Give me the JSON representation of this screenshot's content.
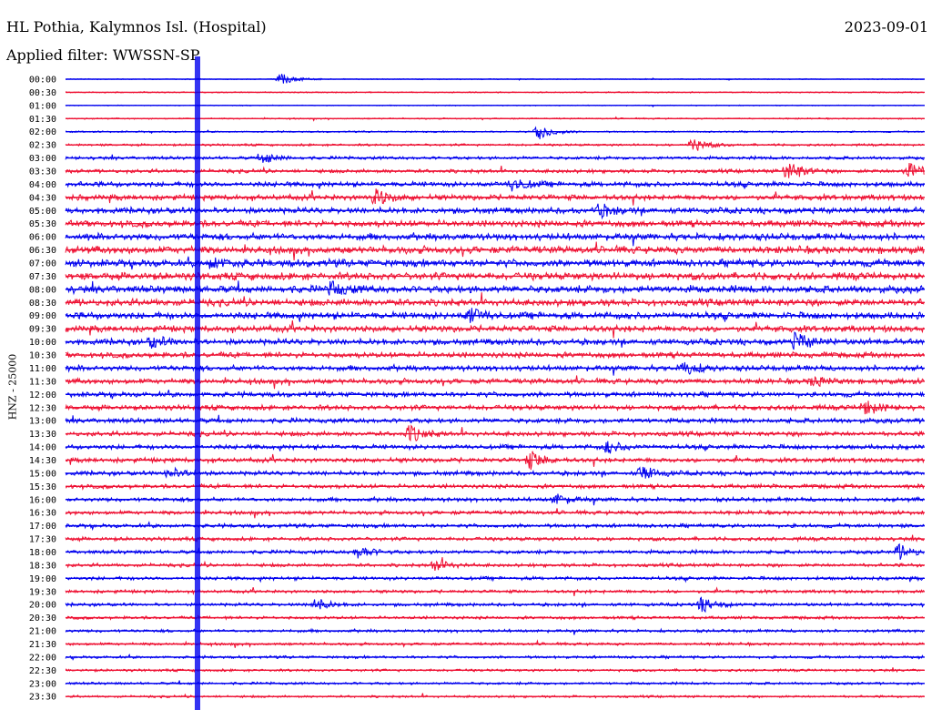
{
  "header": {
    "station": "HL Pothia, Kalymnos Isl. (Hospital)",
    "date": "2023-09-01",
    "filter": "Applied filter: WWSSN-SP"
  },
  "chart_data": {
    "type": "line",
    "ylabel": "HNZ - 25000",
    "rows": [
      "00:00",
      "00:30",
      "01:00",
      "01:30",
      "02:00",
      "02:30",
      "03:00",
      "03:30",
      "04:00",
      "04:30",
      "05:00",
      "05:30",
      "06:00",
      "06:30",
      "07:00",
      "07:30",
      "08:00",
      "08:30",
      "09:00",
      "09:30",
      "10:00",
      "10:30",
      "11:00",
      "11:30",
      "12:00",
      "12:30",
      "13:00",
      "13:30",
      "14:00",
      "14:30",
      "15:00",
      "15:30",
      "16:00",
      "16:30",
      "17:00",
      "17:30",
      "18:00",
      "18:30",
      "19:00",
      "19:30",
      "20:00",
      "20:30",
      "21:00",
      "21:30",
      "22:00",
      "22:30",
      "23:00",
      "23:30"
    ],
    "colors": [
      "#0000ee",
      "#ee1133"
    ],
    "noise_level": [
      0.4,
      0.5,
      0.4,
      0.6,
      0.7,
      1.0,
      1.4,
      1.6,
      2.2,
      2.4,
      2.6,
      2.8,
      3.0,
      3.2,
      3.2,
      3.2,
      3.2,
      3.0,
      3.0,
      2.8,
      2.6,
      2.4,
      2.4,
      2.3,
      2.2,
      2.2,
      2.1,
      2.0,
      2.0,
      2.0,
      1.9,
      1.8,
      1.8,
      1.7,
      1.7,
      1.6,
      1.6,
      1.5,
      1.5,
      1.4,
      1.4,
      1.3,
      1.3,
      1.2,
      1.2,
      1.1,
      1.1,
      1.0
    ],
    "events": [
      {
        "row": 0,
        "x": 0.25,
        "amp": 7
      },
      {
        "row": 4,
        "x": 0.55,
        "amp": 9
      },
      {
        "row": 5,
        "x": 0.73,
        "amp": 8
      },
      {
        "row": 6,
        "x": 0.23,
        "amp": 6
      },
      {
        "row": 7,
        "x": 0.84,
        "amp": 12
      },
      {
        "row": 7,
        "x": 0.98,
        "amp": 10
      },
      {
        "row": 8,
        "x": 0.52,
        "amp": 8
      },
      {
        "row": 9,
        "x": 0.36,
        "amp": 9
      },
      {
        "row": 10,
        "x": 0.62,
        "amp": 7
      },
      {
        "row": 14,
        "x": 0.17,
        "amp": 6
      },
      {
        "row": 16,
        "x": 0.31,
        "amp": 7
      },
      {
        "row": 18,
        "x": 0.47,
        "amp": 8
      },
      {
        "row": 20,
        "x": 0.85,
        "amp": 10
      },
      {
        "row": 20,
        "x": 0.1,
        "amp": 6
      },
      {
        "row": 22,
        "x": 0.72,
        "amp": 7
      },
      {
        "row": 23,
        "x": 0.87,
        "amp": 6
      },
      {
        "row": 25,
        "x": 0.93,
        "amp": 8
      },
      {
        "row": 27,
        "x": 0.4,
        "amp": 9
      },
      {
        "row": 28,
        "x": 0.63,
        "amp": 7
      },
      {
        "row": 29,
        "x": 0.54,
        "amp": 10
      },
      {
        "row": 30,
        "x": 0.67,
        "amp": 8
      },
      {
        "row": 30,
        "x": 0.12,
        "amp": 6
      },
      {
        "row": 32,
        "x": 0.57,
        "amp": 6
      },
      {
        "row": 36,
        "x": 0.97,
        "amp": 8
      },
      {
        "row": 36,
        "x": 0.34,
        "amp": 7
      },
      {
        "row": 37,
        "x": 0.43,
        "amp": 6
      },
      {
        "row": 40,
        "x": 0.29,
        "amp": 7
      },
      {
        "row": 40,
        "x": 0.74,
        "amp": 8
      }
    ],
    "impulse_x": 0.213
  }
}
